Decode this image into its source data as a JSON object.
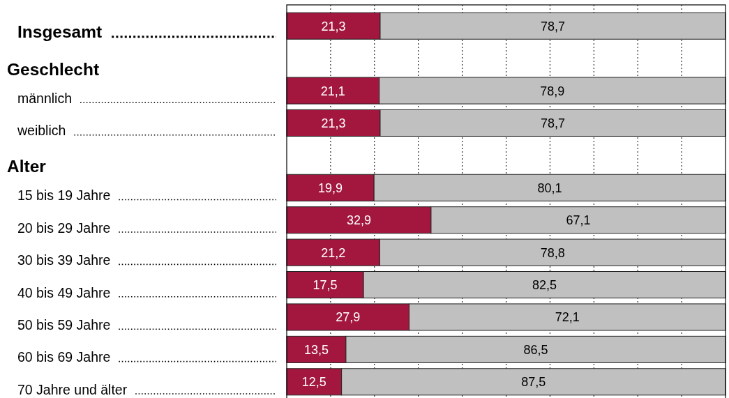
{
  "chart_data": {
    "type": "bar",
    "orientation": "horizontal",
    "stacked": true,
    "categories": [
      "Insgesamt",
      null,
      "männlich",
      "weiblich",
      null,
      "15 bis 19 Jahre",
      "20 bis 29 Jahre",
      "30 bis 39 Jahre",
      "40 bis 49 Jahre",
      "50 bis 59 Jahre",
      "60 bis 69 Jahre",
      "70 Jahre und älter"
    ],
    "annotations": [
      "Geschlecht",
      "Alter"
    ],
    "series": [
      {
        "color": "#a3173f",
        "values": [
          21.3,
          null,
          21.1,
          21.3,
          null,
          19.9,
          32.9,
          21.2,
          17.5,
          27.9,
          13.5,
          12.5
        ],
        "value_labels": [
          "21,3",
          null,
          "21,1",
          "21,3",
          null,
          "19,9",
          "32,9",
          "21,2",
          "17,5",
          "27,9",
          "13,5",
          "12,5"
        ]
      },
      {
        "color": "#c0c0c0",
        "values": [
          78.7,
          null,
          78.9,
          78.7,
          null,
          80.1,
          67.1,
          78.8,
          82.5,
          72.1,
          86.5,
          87.5
        ],
        "value_labels": [
          "78,7",
          null,
          "78,9",
          "78,7",
          null,
          "80,1",
          "67,1",
          "78,8",
          "82,5",
          "72,1",
          "86,5",
          "87,5"
        ]
      }
    ],
    "xlim": [
      0,
      100
    ],
    "xticks": [
      {
        "value": 10,
        "label": null
      },
      {
        "value": 20,
        "label": null
      },
      {
        "value": 30,
        "label": null
      },
      {
        "value": 40,
        "label": null
      },
      {
        "value": 50,
        "label": null
      },
      {
        "value": 60,
        "label": null
      },
      {
        "value": 70,
        "label": null
      },
      {
        "value": 80,
        "label": null
      },
      {
        "value": 90,
        "label": null
      }
    ],
    "grid": "x",
    "tick_labels": "y"
  }
}
